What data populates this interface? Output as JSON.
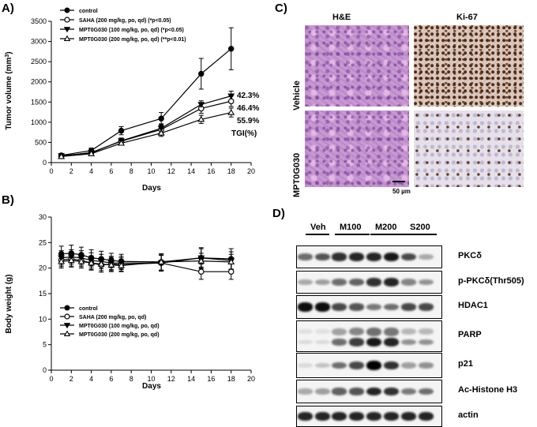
{
  "panels": {
    "a": "A)",
    "b": "B)",
    "c": "C)",
    "d": "D)"
  },
  "chart_a": {
    "type": "line",
    "ylabel_main": "Tumor volume (mm",
    "ylabel_sup": "3",
    "ylabel_end": ")",
    "xlabel": "Days",
    "xlim": [
      0,
      20
    ],
    "ylim": [
      0,
      3500
    ],
    "xticks": [
      "0",
      "2",
      "4",
      "6",
      "8",
      "10",
      "12",
      "14",
      "16",
      "18",
      "20"
    ],
    "yticks": [
      "0",
      "500",
      "1000",
      "1500",
      "2000",
      "2500",
      "3000",
      "3500"
    ],
    "tgi_header": "TGI(%)",
    "series": [
      {
        "legend": "control",
        "marker": "filled-circle",
        "x": [
          1,
          4,
          7,
          11,
          15,
          18
        ],
        "y": [
          180,
          300,
          790,
          1090,
          2200,
          2820
        ],
        "err": [
          40,
          60,
          100,
          150,
          380,
          520
        ]
      },
      {
        "legend": "SAHA (200 mg/kg, po, qd) (*p<0.05)",
        "marker": "open-circle",
        "x": [
          1,
          4,
          7,
          11,
          15,
          18
        ],
        "y": [
          160,
          250,
          530,
          820,
          1340,
          1520
        ],
        "err": [
          30,
          40,
          60,
          100,
          120,
          130
        ],
        "tgi": "46.4%"
      },
      {
        "legend": "MPT0G030 (100 mg/kg, po, qd) (*p<0.05)",
        "marker": "filled-triangle-down",
        "x": [
          1,
          4,
          7,
          11,
          15,
          18
        ],
        "y": [
          170,
          240,
          540,
          850,
          1440,
          1650
        ],
        "err": [
          30,
          40,
          70,
          110,
          90,
          120
        ],
        "tgi": "42.3%"
      },
      {
        "legend": "MPT0G030 (200 mg/kg, po, qd) (**p<0.01)",
        "marker": "open-triangle-up",
        "x": [
          1,
          4,
          7,
          11,
          15,
          18
        ],
        "y": [
          150,
          220,
          480,
          730,
          1070,
          1240
        ],
        "err": [
          30,
          40,
          50,
          80,
          100,
          110
        ],
        "tgi": "55.9%"
      }
    ]
  },
  "chart_b": {
    "type": "line",
    "ylabel": "Body weight (g)",
    "xlabel": "Days",
    "xlim": [
      0,
      20
    ],
    "ylim": [
      0,
      30
    ],
    "xticks": [
      "0",
      "2",
      "4",
      "6",
      "8",
      "10",
      "12",
      "14",
      "16",
      "18",
      "20"
    ],
    "yticks": [
      "0",
      "5",
      "10",
      "15",
      "20",
      "25",
      "30"
    ],
    "series": [
      {
        "legend": "control",
        "marker": "filled-circle",
        "x": [
          1,
          2,
          3,
          4,
          5,
          6,
          7,
          11,
          15,
          18
        ],
        "y": [
          22.8,
          22.9,
          22.6,
          22.0,
          21.8,
          21.5,
          21.3,
          21.2,
          22.0,
          21.8
        ],
        "err": [
          1.5,
          1.6,
          1.5,
          1.6,
          1.5,
          1.4,
          1.4,
          1.6,
          2.0,
          2.0
        ]
      },
      {
        "legend": "SAHA (200 mg/kg, po, qd)",
        "marker": "open-circle",
        "x": [
          1,
          2,
          3,
          4,
          5,
          6,
          7,
          11,
          15,
          18
        ],
        "y": [
          21.6,
          21.8,
          21.5,
          21.0,
          20.6,
          20.8,
          20.7,
          21.0,
          19.3,
          19.3
        ],
        "err": [
          1.3,
          1.4,
          1.2,
          1.3,
          1.4,
          1.3,
          1.3,
          1.5,
          1.5,
          1.5
        ]
      },
      {
        "legend": "MPT0G030 (100 mg/kg, po, qd)",
        "marker": "filled-triangle-down",
        "x": [
          1,
          2,
          3,
          4,
          5,
          6,
          7,
          11,
          15,
          18
        ],
        "y": [
          22.0,
          22.2,
          22.0,
          21.5,
          21.3,
          21.0,
          21.0,
          21.0,
          22.0,
          21.5
        ],
        "err": [
          1.4,
          1.4,
          1.4,
          1.5,
          1.4,
          1.3,
          1.3,
          1.6,
          1.8,
          1.7
        ]
      },
      {
        "legend": "MPT0G030 (200 mg/kg, po, qd)",
        "marker": "open-triangle-up",
        "x": [
          1,
          2,
          3,
          4,
          5,
          6,
          7,
          11,
          15,
          18
        ],
        "y": [
          21.3,
          21.5,
          21.3,
          21.0,
          20.8,
          20.6,
          20.5,
          21.2,
          21.4,
          21.2
        ],
        "err": [
          1.3,
          1.3,
          1.3,
          1.4,
          1.3,
          1.3,
          1.2,
          1.6,
          1.5,
          1.5
        ]
      }
    ]
  },
  "histology": {
    "col_he": "H&E",
    "col_ki67": "Ki-67",
    "row_vehicle": "Vehicle",
    "row_mpt": "MPT0G030",
    "scale": "50 µm"
  },
  "western": {
    "lanes": [
      "Veh",
      "M100",
      "M200",
      "S200"
    ],
    "rows": [
      {
        "label": "PKCδ",
        "intensity": [
          0.55,
          0.65,
          0.8,
          0.85,
          0.85,
          0.9,
          0.7,
          0.3
        ]
      },
      {
        "label": "p-PKCδ(Thr505)",
        "intensity": [
          0.3,
          0.35,
          0.55,
          0.6,
          0.8,
          0.85,
          0.45,
          0.4
        ]
      },
      {
        "label": "HDAC1",
        "intensity": [
          0.95,
          0.95,
          0.7,
          0.65,
          0.5,
          0.55,
          0.7,
          0.7
        ]
      },
      {
        "label": "PARP",
        "intensity": [
          0.1,
          0.1,
          0.55,
          0.75,
          0.9,
          0.85,
          0.4,
          0.4
        ]
      },
      {
        "label": "p21",
        "intensity": [
          0.1,
          0.2,
          0.55,
          0.7,
          1.0,
          0.8,
          0.35,
          0.4
        ]
      },
      {
        "label": "Ac-Histone H3",
        "intensity": [
          0.3,
          0.35,
          0.6,
          0.65,
          0.85,
          0.8,
          0.5,
          0.55
        ]
      },
      {
        "label": "actin",
        "intensity": [
          0.85,
          0.85,
          0.85,
          0.85,
          0.85,
          0.85,
          0.85,
          0.85
        ]
      }
    ]
  }
}
